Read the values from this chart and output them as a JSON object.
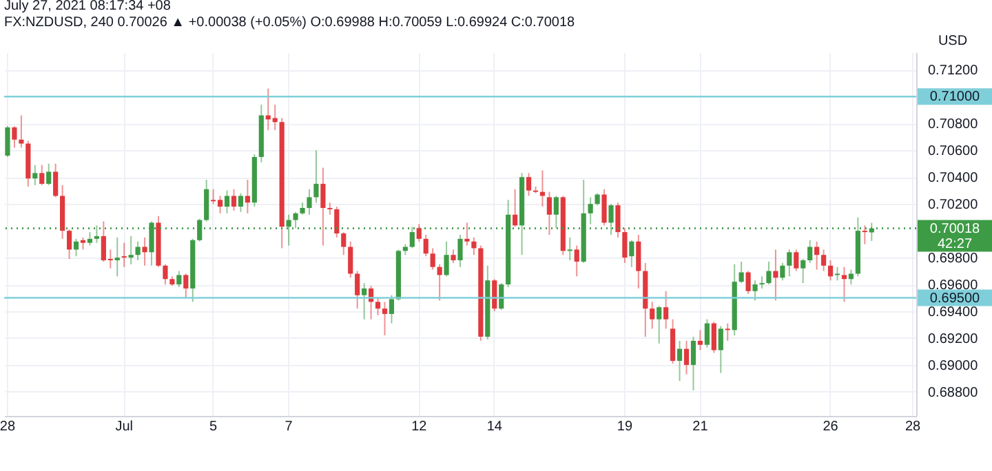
{
  "chart_data": {
    "type": "candlestick",
    "title": "July 27, 2021 08:17:34 +08",
    "subtitle": "FX:NZDUSD, 240 0.70026 ▲ +0.00038 (+0.05%) O:0.69988 H:0.70059 L:0.69924 C:0.70018",
    "ylabel": "USD",
    "categories": [
      "28",
      null,
      null,
      null,
      null,
      null,
      null,
      null,
      null,
      null,
      null,
      null,
      null,
      null,
      null,
      null,
      null,
      "Jul",
      null,
      null,
      null,
      null,
      null,
      null,
      null,
      null,
      null,
      null,
      null,
      null,
      "5",
      null,
      null,
      null,
      null,
      null,
      null,
      null,
      null,
      null,
      null,
      "7",
      null,
      null,
      null,
      null,
      null,
      null,
      null,
      null,
      null,
      null,
      null,
      null,
      null,
      null,
      null,
      null,
      null,
      null,
      "12",
      null,
      null,
      null,
      null,
      null,
      null,
      null,
      null,
      null,
      null,
      "14",
      null,
      null,
      null,
      null,
      null,
      null,
      null,
      null,
      null,
      null,
      null,
      null,
      null,
      null,
      null,
      null,
      null,
      null,
      "19",
      null,
      null,
      null,
      null,
      null,
      null,
      null,
      null,
      null,
      null,
      "21",
      null,
      null,
      null,
      null,
      null,
      null,
      null,
      null,
      null,
      null,
      null,
      null,
      null,
      null,
      null,
      null,
      null,
      null,
      "26",
      null,
      null,
      null,
      null,
      null,
      null,
      null,
      null,
      null,
      null,
      null,
      "28"
    ],
    "ohlc": [
      [
        0.7056,
        0.7078,
        0.7055,
        0.7077
      ],
      [
        0.7077,
        0.7078,
        0.7062,
        0.7068
      ],
      [
        0.7068,
        0.7086,
        0.7062,
        0.7065
      ],
      [
        0.7065,
        0.7067,
        0.7033,
        0.7039
      ],
      [
        0.7039,
        0.7049,
        0.7034,
        0.7043
      ],
      [
        0.7043,
        0.7049,
        0.7034,
        0.7035
      ],
      [
        0.7035,
        0.705,
        0.7034,
        0.7044
      ],
      [
        0.7044,
        0.705,
        0.7025,
        0.7026
      ],
      [
        0.7026,
        0.7034,
        0.6994,
        0.7
      ],
      [
        0.7,
        0.7001,
        0.6979,
        0.6986
      ],
      [
        0.6986,
        0.6994,
        0.6981,
        0.6992
      ],
      [
        0.6993,
        0.6995,
        0.6986,
        0.6991
      ],
      [
        0.6991,
        0.6999,
        0.6989,
        0.6994
      ],
      [
        0.6994,
        0.7004,
        0.6991,
        0.6996
      ],
      [
        0.6996,
        0.7007,
        0.6977,
        0.6978
      ],
      [
        0.6979,
        0.6986,
        0.6972,
        0.6978
      ],
      [
        0.6978,
        0.6995,
        0.6966,
        0.698
      ],
      [
        0.6981,
        0.6991,
        0.6973,
        0.698
      ],
      [
        0.698,
        0.6996,
        0.6975,
        0.6982
      ],
      [
        0.6982,
        0.6992,
        0.6978,
        0.6988
      ],
      [
        0.6988,
        0.6995,
        0.6974,
        0.6984
      ],
      [
        0.6984,
        0.7007,
        0.6974,
        0.7006
      ],
      [
        0.7006,
        0.7011,
        0.6973,
        0.6974
      ],
      [
        0.6974,
        0.6975,
        0.696,
        0.6964
      ],
      [
        0.6964,
        0.6966,
        0.6959,
        0.696
      ],
      [
        0.696,
        0.697,
        0.6958,
        0.6967
      ],
      [
        0.6967,
        0.6968,
        0.695,
        0.6957
      ],
      [
        0.6957,
        0.6994,
        0.6947,
        0.6993
      ],
      [
        0.6993,
        0.7009,
        0.6992,
        0.7008
      ],
      [
        0.7008,
        0.7038,
        0.7007,
        0.7031
      ],
      [
        0.7023,
        0.7031,
        0.702,
        0.7022
      ],
      [
        0.7023,
        0.7026,
        0.7013,
        0.7018
      ],
      [
        0.7018,
        0.703,
        0.7013,
        0.7026
      ],
      [
        0.7026,
        0.7031,
        0.7015,
        0.7018
      ],
      [
        0.7018,
        0.7028,
        0.7014,
        0.7026
      ],
      [
        0.7026,
        0.7038,
        0.7013,
        0.7021
      ],
      [
        0.7021,
        0.7057,
        0.7018,
        0.7055
      ],
      [
        0.7055,
        0.7094,
        0.7051,
        0.7086
      ],
      [
        0.7086,
        0.7106,
        0.7075,
        0.7083
      ],
      [
        0.7084,
        0.7094,
        0.7075,
        0.7081
      ],
      [
        0.7081,
        0.7084,
        0.6987,
        0.7003
      ],
      [
        0.7003,
        0.7012,
        0.6989,
        0.7008
      ],
      [
        0.7008,
        0.7014,
        0.7002,
        0.7013
      ],
      [
        0.7013,
        0.7021,
        0.7012,
        0.7017
      ],
      [
        0.7017,
        0.7031,
        0.7012,
        0.7025
      ],
      [
        0.7025,
        0.706,
        0.7021,
        0.7035
      ],
      [
        0.7035,
        0.7047,
        0.6989,
        0.7017
      ],
      [
        0.7017,
        0.7021,
        0.7012,
        0.7016
      ],
      [
        0.7016,
        0.7018,
        0.6995,
        0.6998
      ],
      [
        0.6998,
        0.6999,
        0.6982,
        0.6988
      ],
      [
        0.6988,
        0.6992,
        0.6965,
        0.6968
      ],
      [
        0.6968,
        0.697,
        0.6942,
        0.6952
      ],
      [
        0.6952,
        0.6961,
        0.6934,
        0.6957
      ],
      [
        0.6957,
        0.6959,
        0.6934,
        0.6947
      ],
      [
        0.6947,
        0.695,
        0.6937,
        0.6942
      ],
      [
        0.6942,
        0.6947,
        0.6922,
        0.6938
      ],
      [
        0.6938,
        0.6952,
        0.6931,
        0.6949
      ],
      [
        0.6949,
        0.6986,
        0.6948,
        0.6985
      ],
      [
        0.6985,
        0.699,
        0.6982,
        0.6988
      ],
      [
        0.6988,
        0.7003,
        0.6987,
        0.6999
      ],
      [
        0.7002,
        0.7005,
        0.6992,
        0.6994
      ],
      [
        0.6994,
        0.6997,
        0.6981,
        0.6983
      ],
      [
        0.6983,
        0.6987,
        0.6971,
        0.6973
      ],
      [
        0.6973,
        0.6975,
        0.6948,
        0.6967
      ],
      [
        0.6967,
        0.6992,
        0.6966,
        0.6982
      ],
      [
        0.6982,
        0.6986,
        0.6976,
        0.6978
      ],
      [
        0.6978,
        0.6997,
        0.6973,
        0.6994
      ],
      [
        0.6994,
        0.7006,
        0.6989,
        0.6992
      ],
      [
        0.6992,
        0.6995,
        0.6982,
        0.6987
      ],
      [
        0.6987,
        0.6989,
        0.6918,
        0.6921
      ],
      [
        0.6921,
        0.6974,
        0.6919,
        0.6963
      ],
      [
        0.6963,
        0.6964,
        0.694,
        0.6942
      ],
      [
        0.6942,
        0.6961,
        0.6941,
        0.696
      ],
      [
        0.696,
        0.7023,
        0.6958,
        0.7012
      ],
      [
        0.7012,
        0.7031,
        0.7003,
        0.7004
      ],
      [
        0.7004,
        0.7043,
        0.6982,
        0.704
      ],
      [
        0.704,
        0.7043,
        0.7026,
        0.703
      ],
      [
        0.703,
        0.7033,
        0.7028,
        0.7029
      ],
      [
        0.7029,
        0.7045,
        0.7018,
        0.7026
      ],
      [
        0.7025,
        0.7029,
        0.6997,
        0.7012
      ],
      [
        0.7012,
        0.7026,
        0.7002,
        0.7025
      ],
      [
        0.7025,
        0.7026,
        0.6982,
        0.6985
      ],
      [
        0.6985,
        0.6995,
        0.6978,
        0.6986
      ],
      [
        0.6986,
        0.6989,
        0.6966,
        0.6977
      ],
      [
        0.6977,
        0.7038,
        0.6976,
        0.7013
      ],
      [
        0.7013,
        0.7025,
        0.7005,
        0.702
      ],
      [
        0.702,
        0.7028,
        0.7019,
        0.7027
      ],
      [
        0.7027,
        0.7031,
        0.7004,
        0.7006
      ],
      [
        0.7006,
        0.702,
        0.6997,
        0.7019
      ],
      [
        0.7019,
        0.7021,
        0.6995,
        0.6999
      ],
      [
        0.6999,
        0.7002,
        0.6976,
        0.698
      ],
      [
        0.6981,
        0.6993,
        0.6973,
        0.6992
      ],
      [
        0.6992,
        0.6997,
        0.6957,
        0.697
      ],
      [
        0.697,
        0.6976,
        0.6921,
        0.6942
      ],
      [
        0.6942,
        0.6947,
        0.6927,
        0.6934
      ],
      [
        0.6934,
        0.6944,
        0.6916,
        0.6943
      ],
      [
        0.6943,
        0.6955,
        0.6927,
        0.6934
      ],
      [
        0.6927,
        0.6934,
        0.6901,
        0.6903
      ],
      [
        0.6903,
        0.6918,
        0.6888,
        0.6912
      ],
      [
        0.6912,
        0.6918,
        0.6893,
        0.69
      ],
      [
        0.69,
        0.6921,
        0.6881,
        0.6918
      ],
      [
        0.6918,
        0.6926,
        0.6911,
        0.6915
      ],
      [
        0.6915,
        0.6934,
        0.6913,
        0.6931
      ],
      [
        0.6931,
        0.6932,
        0.6909,
        0.6911
      ],
      [
        0.6911,
        0.6929,
        0.6894,
        0.6927
      ],
      [
        0.6927,
        0.6931,
        0.6918,
        0.6926
      ],
      [
        0.6926,
        0.6975,
        0.6922,
        0.6962
      ],
      [
        0.6962,
        0.6977,
        0.6961,
        0.6969
      ],
      [
        0.6969,
        0.697,
        0.6953,
        0.6955
      ],
      [
        0.6955,
        0.6963,
        0.6948,
        0.696
      ],
      [
        0.696,
        0.6966,
        0.6957,
        0.6961
      ],
      [
        0.6961,
        0.6977,
        0.696,
        0.697
      ],
      [
        0.697,
        0.6986,
        0.6948,
        0.6965
      ],
      [
        0.6965,
        0.6976,
        0.6963,
        0.6974
      ],
      [
        0.6974,
        0.6986,
        0.6966,
        0.6984
      ],
      [
        0.6984,
        0.6986,
        0.697,
        0.6972
      ],
      [
        0.6972,
        0.6979,
        0.6961,
        0.6978
      ],
      [
        0.6978,
        0.6993,
        0.6976,
        0.6988
      ],
      [
        0.6988,
        0.6992,
        0.6971,
        0.6982
      ],
      [
        0.6982,
        0.6986,
        0.697,
        0.6974
      ],
      [
        0.6974,
        0.6978,
        0.6963,
        0.6966
      ],
      [
        0.6967,
        0.6973,
        0.6963,
        0.6968
      ],
      [
        0.6967,
        0.6973,
        0.6947,
        0.6964
      ],
      [
        0.6964,
        0.6971,
        0.696,
        0.6968
      ],
      [
        0.6968,
        0.701,
        0.6966,
        0.7
      ],
      [
        0.7,
        0.7004,
        0.699,
        0.6999
      ],
      [
        0.69988,
        0.70059,
        0.69924,
        0.70018
      ],
      null,
      null,
      null,
      null,
      null,
      null
    ],
    "colors": [
      "#3d9b45",
      "#e0393e",
      "#e0393e",
      "#e0393e",
      "#3d9b45",
      "#e0393e",
      "#3d9b45",
      "#e0393e",
      "#e0393e",
      "#e0393e",
      "#3d9b45",
      "#e0393e",
      "#3d9b45",
      "#3d9b45",
      "#e0393e",
      "#e0393e",
      "#3d9b45",
      "#e0393e",
      "#3d9b45",
      "#3d9b45",
      "#e0393e",
      "#3d9b45",
      "#e0393e",
      "#e0393e",
      "#e0393e",
      "#3d9b45",
      "#e0393e",
      "#3d9b45",
      "#3d9b45",
      "#3d9b45",
      "#e0393e",
      "#e0393e",
      "#3d9b45",
      "#e0393e",
      "#3d9b45",
      "#e0393e",
      "#3d9b45",
      "#3d9b45",
      "#e0393e",
      "#e0393e",
      "#e0393e",
      "#3d9b45",
      "#3d9b45",
      "#3d9b45",
      "#3d9b45",
      "#3d9b45",
      "#e0393e",
      "#e0393e",
      "#e0393e",
      "#e0393e",
      "#e0393e",
      "#e0393e",
      "#3d9b45",
      "#e0393e",
      "#e0393e",
      "#e0393e",
      "#3d9b45",
      "#3d9b45",
      "#3d9b45",
      "#3d9b45",
      "#e0393e",
      "#e0393e",
      "#e0393e",
      "#e0393e",
      "#3d9b45",
      "#e0393e",
      "#3d9b45",
      "#e0393e",
      "#e0393e",
      "#e0393e",
      "#3d9b45",
      "#e0393e",
      "#3d9b45",
      "#3d9b45",
      "#e0393e",
      "#3d9b45",
      "#e0393e",
      "#e0393e",
      "#e0393e",
      "#e0393e",
      "#3d9b45",
      "#e0393e",
      "#3d9b45",
      "#e0393e",
      "#3d9b45",
      "#3d9b45",
      "#3d9b45",
      "#e0393e",
      "#3d9b45",
      "#e0393e",
      "#e0393e",
      "#3d9b45",
      "#e0393e",
      "#e0393e",
      "#e0393e",
      "#3d9b45",
      "#e0393e",
      "#e0393e",
      "#3d9b45",
      "#e0393e",
      "#3d9b45",
      "#e0393e",
      "#3d9b45",
      "#e0393e",
      "#3d9b45",
      "#e0393e",
      "#3d9b45",
      "#3d9b45",
      "#e0393e",
      "#3d9b45",
      "#3d9b45",
      "#3d9b45",
      "#e0393e",
      "#3d9b45",
      "#3d9b45",
      "#e0393e",
      "#3d9b45",
      "#3d9b45",
      "#e0393e",
      "#e0393e",
      "#e0393e",
      "#3d9b45",
      "#e0393e",
      "#3d9b45",
      "#3d9b45",
      "#e0393e",
      "#3d9b45",
      null,
      null,
      null,
      null,
      null,
      null
    ],
    "ylim": [
      0.6862,
      0.7133
    ],
    "yticks": [
      {
        "value": 0.688,
        "label": "0.68800"
      },
      {
        "value": 0.69,
        "label": "0.69000"
      },
      {
        "value": 0.692,
        "label": "0.69200"
      },
      {
        "value": 0.694,
        "label": "0.69400"
      },
      {
        "value": 0.696,
        "label": "0.69600"
      },
      {
        "value": 0.698,
        "label": "0.69800"
      },
      {
        "value": 0.702,
        "label": "0.70200"
      },
      {
        "value": 0.704,
        "label": "0.70400"
      },
      {
        "value": 0.706,
        "label": "0.70600"
      },
      {
        "value": 0.708,
        "label": "0.70800"
      },
      {
        "value": 0.712,
        "label": "0.71200"
      }
    ],
    "grid": true,
    "ref_lines": [
      {
        "axis": "y",
        "value": 0.71,
        "label": "0.71000",
        "color": "#7fcfda"
      },
      {
        "axis": "y",
        "value": 0.695,
        "label": "0.69500",
        "color": "#7fcfda"
      },
      {
        "axis": "y",
        "value": 0.70018,
        "label": "0.70018",
        "color": "#3d9b45",
        "line_style": "dotted"
      }
    ],
    "annotations": [
      "42:27"
    ]
  }
}
